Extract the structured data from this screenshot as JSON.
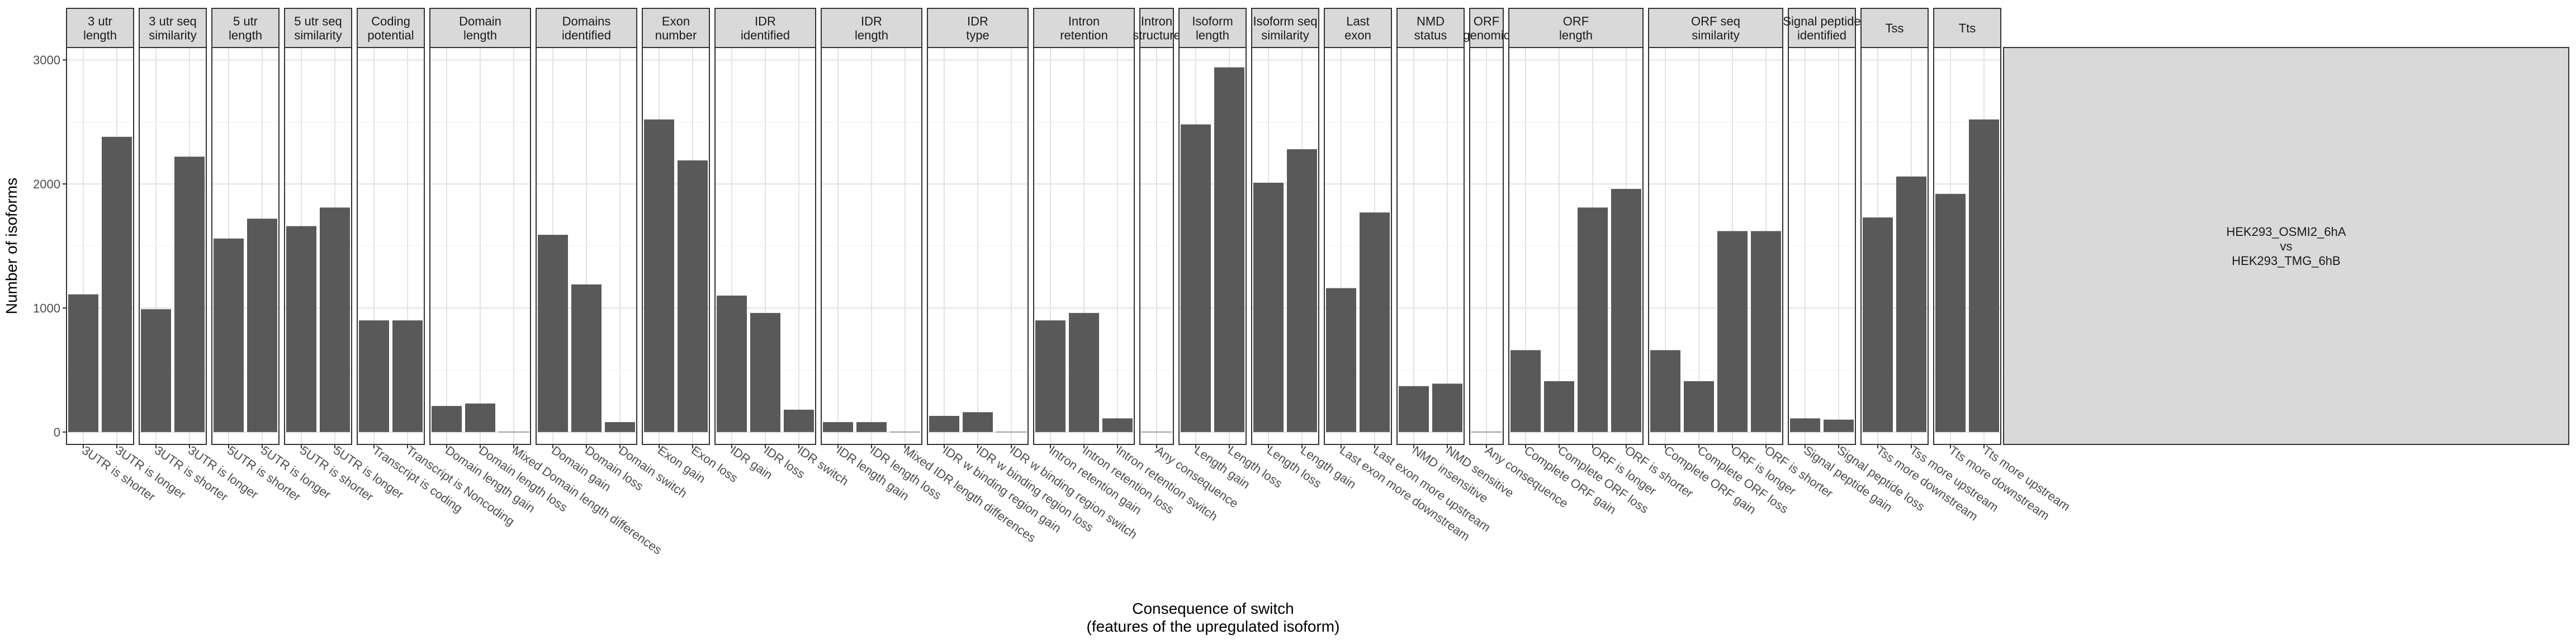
{
  "chart_data": {
    "type": "bar",
    "xlabel": [
      "Consequence of switch",
      "(features of the upregulated isoform)"
    ],
    "ylabel": "Number of isoforms",
    "ylim": [
      -100,
      3100
    ],
    "yticks": [
      0,
      1000,
      2000,
      3000
    ],
    "grid": true,
    "bar_color": "#595959",
    "row_strip": [
      "HEK293_OSMI2_6hA",
      "vs",
      "HEK293_TMG_6hB"
    ],
    "panels": [
      {
        "strip": [
          "3 utr",
          "length"
        ],
        "categories": [
          "3UTR is shorter",
          "3UTR is longer"
        ],
        "values": [
          1110,
          2380
        ]
      },
      {
        "strip": [
          "3 utr seq",
          "similarity"
        ],
        "categories": [
          "3UTR is shorter",
          "3UTR is longer"
        ],
        "values": [
          990,
          2220
        ]
      },
      {
        "strip": [
          "5 utr",
          "length"
        ],
        "categories": [
          "5UTR is shorter",
          "5UTR is longer"
        ],
        "values": [
          1560,
          1720
        ]
      },
      {
        "strip": [
          "5 utr seq",
          "similarity"
        ],
        "categories": [
          "5UTR is shorter",
          "5UTR is longer"
        ],
        "values": [
          1660,
          1810
        ]
      },
      {
        "strip": [
          "Coding",
          "potential"
        ],
        "categories": [
          "Transcript is coding",
          "Transcript is Noncoding"
        ],
        "values": [
          900,
          900
        ]
      },
      {
        "strip": [
          "Domain",
          "length"
        ],
        "categories": [
          "Domain length gain",
          "Domain length loss",
          "Mixed Domain length differences"
        ],
        "values": [
          210,
          230,
          0
        ]
      },
      {
        "strip": [
          "Domains",
          "identified"
        ],
        "categories": [
          "Domain gain",
          "Domain loss",
          "Domain switch"
        ],
        "values": [
          1590,
          1190,
          80
        ]
      },
      {
        "strip": [
          "Exon",
          "number"
        ],
        "categories": [
          "Exon gain",
          "Exon loss"
        ],
        "values": [
          2520,
          2190
        ]
      },
      {
        "strip": [
          "IDR",
          "identified"
        ],
        "categories": [
          "IDR gain",
          "IDR loss",
          "IDR switch"
        ],
        "values": [
          1100,
          960,
          180
        ]
      },
      {
        "strip": [
          "IDR",
          "length"
        ],
        "categories": [
          "IDR length gain",
          "IDR length loss",
          "Mixed IDR length differences"
        ],
        "values": [
          80,
          80,
          0
        ]
      },
      {
        "strip": [
          "IDR",
          "type"
        ],
        "categories": [
          "IDR w binding region gain",
          "IDR w binding region loss",
          "IDR w binding region switch"
        ],
        "values": [
          130,
          160,
          0
        ]
      },
      {
        "strip": [
          "Intron",
          "retention"
        ],
        "categories": [
          "Intron retention gain",
          "Intron retention loss",
          "Intron retention switch"
        ],
        "values": [
          900,
          960,
          110
        ]
      },
      {
        "strip": [
          "Intron",
          "structure"
        ],
        "categories": [
          "Any consequence"
        ],
        "values": [
          0
        ]
      },
      {
        "strip": [
          "Isoform",
          "length"
        ],
        "categories": [
          "Length gain",
          "Length loss"
        ],
        "values": [
          2480,
          2940
        ]
      },
      {
        "strip": [
          "Isoform seq",
          "similarity"
        ],
        "categories": [
          "Length loss",
          "Length gain"
        ],
        "values": [
          2010,
          2280
        ]
      },
      {
        "strip": [
          "Last",
          "exon"
        ],
        "categories": [
          "Last exon more downstream",
          "Last exon more upstream"
        ],
        "values": [
          1160,
          1770
        ]
      },
      {
        "strip": [
          "NMD",
          "status"
        ],
        "categories": [
          "NMD insensitive",
          "NMD sensitive"
        ],
        "values": [
          370,
          390
        ]
      },
      {
        "strip": [
          "ORF",
          "genomic"
        ],
        "categories": [
          "Any consequence"
        ],
        "values": [
          0
        ]
      },
      {
        "strip": [
          "ORF",
          "length"
        ],
        "categories": [
          "Complete ORF gain",
          "Complete ORF loss",
          "ORF is longer",
          "ORF is shorter"
        ],
        "values": [
          660,
          410,
          1810,
          1960
        ]
      },
      {
        "strip": [
          "ORF seq",
          "similarity"
        ],
        "categories": [
          "Complete ORF gain",
          "Complete ORF loss",
          "ORF is longer",
          "ORF is shorter"
        ],
        "values": [
          660,
          410,
          1620,
          1620
        ]
      },
      {
        "strip": [
          "Signal peptide",
          "identified"
        ],
        "categories": [
          "Signal peptide gain",
          "Signal peptide loss"
        ],
        "values": [
          110,
          100
        ]
      },
      {
        "strip": [
          "Tss"
        ],
        "categories": [
          "Tss more downstream",
          "Tss more upstream"
        ],
        "values": [
          1730,
          2060
        ]
      },
      {
        "strip": [
          "Tts"
        ],
        "categories": [
          "Tts more downstream",
          "Tts more upstream"
        ],
        "values": [
          1920,
          2520
        ]
      }
    ]
  }
}
